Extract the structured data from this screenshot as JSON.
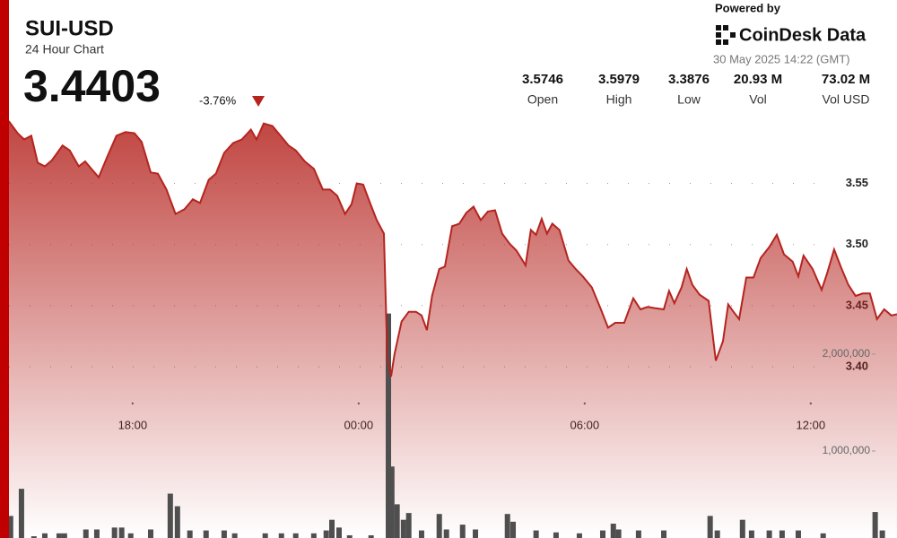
{
  "header": {
    "title": "SUI-USD",
    "subtitle": "24 Hour Chart",
    "price": "3.4403",
    "change": "-3.76%",
    "powered_by": "Powered by",
    "brand": "CoinDesk Data",
    "timestamp": "30 May 2025 14:22 (GMT)",
    "stats": [
      {
        "value": "3.5746",
        "label": "Open"
      },
      {
        "value": "3.5979",
        "label": "High"
      },
      {
        "value": "3.3876",
        "label": "Low"
      },
      {
        "value": "20.93 M",
        "label": "Vol"
      },
      {
        "value": "73.02 M",
        "label": "Vol USD"
      }
    ]
  },
  "chart_data": {
    "type": "line",
    "xlim": [
      -9.52,
      14.29
    ],
    "xticks": [
      {
        "value": -6,
        "label": "18:00"
      },
      {
        "value": 0,
        "label": "00:00"
      },
      {
        "value": 6,
        "label": "06:00"
      },
      {
        "value": 12,
        "label": "12:00"
      }
    ],
    "ylim": [
      3.26,
      3.7
    ],
    "yticks": [
      {
        "value": 3.4,
        "label": "3.40"
      },
      3.45,
      {
        "value": 3.5,
        "label": "3.50"
      },
      3.55
    ],
    "y2lim": [
      102000,
      5657000
    ],
    "y2ticks": [
      {
        "value": 1000000,
        "label": "1,000,000"
      },
      {
        "value": 2000000,
        "label": "2,000,000"
      }
    ],
    "grid": true,
    "series": [
      {
        "type": "line",
        "color": "#b5241f",
        "x": [
          -9.29,
          -9.05,
          -8.88,
          -8.69,
          -8.52,
          -8.33,
          -8.14,
          -7.86,
          -7.67,
          -7.43,
          -7.26,
          -7.07,
          -6.9,
          -6.67,
          -6.43,
          -6.19,
          -5.95,
          -5.76,
          -5.52,
          -5.33,
          -5.1,
          -4.86,
          -4.62,
          -4.4,
          -4.21,
          -3.98,
          -3.79,
          -3.57,
          -3.33,
          -3.1,
          -2.86,
          -2.71,
          -2.52,
          -2.29,
          -2.1,
          -1.86,
          -1.67,
          -1.43,
          -1.19,
          -0.95,
          -0.76,
          -0.57,
          -0.36,
          -0.19,
          -0.05,
          0.12,
          0.29,
          0.48,
          0.67,
          0.76,
          0.86,
          0.95,
          1.14,
          1.33,
          1.52,
          1.67,
          1.81,
          1.95,
          2.14,
          2.29,
          2.48,
          2.67,
          2.86,
          3.05,
          3.24,
          3.43,
          3.62,
          3.81,
          4.0,
          4.19,
          4.43,
          4.57,
          4.71,
          4.86,
          5.0,
          5.14,
          5.33,
          5.57,
          5.76,
          5.95,
          6.19,
          6.43,
          6.62,
          6.81,
          7.05,
          7.29,
          7.48,
          7.67,
          7.86,
          8.1,
          8.24,
          8.38,
          8.57,
          8.71,
          8.86,
          9.05,
          9.29,
          9.48,
          9.67,
          9.81,
          9.95,
          10.1,
          10.29,
          10.48,
          10.67,
          10.9,
          11.1,
          11.29,
          11.52,
          11.67,
          11.81,
          12.05,
          12.29,
          12.43,
          12.62,
          12.81,
          13.0,
          13.19,
          13.38,
          13.57,
          13.76,
          13.95,
          14.14,
          14.29
        ],
        "values": [
          3.601,
          3.591,
          3.586,
          3.589,
          3.567,
          3.564,
          3.569,
          3.581,
          3.577,
          3.564,
          3.568,
          3.561,
          3.555,
          3.572,
          3.589,
          3.592,
          3.591,
          3.584,
          3.559,
          3.558,
          3.545,
          3.525,
          3.529,
          3.537,
          3.534,
          3.553,
          3.558,
          3.575,
          3.583,
          3.586,
          3.594,
          3.586,
          3.599,
          3.597,
          3.59,
          3.581,
          3.577,
          3.568,
          3.562,
          3.545,
          3.545,
          3.54,
          3.525,
          3.533,
          3.55,
          3.549,
          3.535,
          3.52,
          3.509,
          3.407,
          3.392,
          3.41,
          3.437,
          3.445,
          3.445,
          3.442,
          3.43,
          3.458,
          3.48,
          3.482,
          3.515,
          3.517,
          3.526,
          3.531,
          3.52,
          3.527,
          3.528,
          3.509,
          3.501,
          3.495,
          3.483,
          3.512,
          3.508,
          3.521,
          3.509,
          3.517,
          3.512,
          3.487,
          3.48,
          3.474,
          3.465,
          3.447,
          3.432,
          3.436,
          3.436,
          3.456,
          3.447,
          3.449,
          3.448,
          3.447,
          3.462,
          3.452,
          3.465,
          3.48,
          3.467,
          3.459,
          3.454,
          3.405,
          3.421,
          3.451,
          3.445,
          3.439,
          3.473,
          3.473,
          3.489,
          3.498,
          3.508,
          3.492,
          3.486,
          3.474,
          3.491,
          3.48,
          3.463,
          3.476,
          3.496,
          3.481,
          3.467,
          3.458,
          3.46,
          3.46,
          3.439,
          3.447,
          3.442,
          3.443
        ]
      },
      {
        "type": "bar",
        "axis": "y2",
        "color": "#4f4f4f",
        "x": [
          -9.24,
          -8.95,
          -8.62,
          -8.33,
          -7.95,
          -7.81,
          -7.24,
          -6.95,
          -6.48,
          -6.29,
          -6.05,
          -5.52,
          -5.0,
          -4.81,
          -4.48,
          -4.05,
          -3.57,
          -3.29,
          -2.48,
          -2.05,
          -1.67,
          -1.19,
          -0.86,
          -0.71,
          -0.52,
          -0.24,
          0.33,
          0.79,
          0.88,
          1.02,
          1.19,
          1.33,
          1.67,
          2.14,
          2.33,
          2.76,
          3.1,
          3.95,
          4.1,
          4.71,
          5.24,
          5.86,
          6.48,
          6.76,
          6.9,
          7.43,
          8.1,
          9.33,
          9.52,
          10.19,
          10.43,
          10.9,
          11.24,
          11.67,
          12.33,
          13.71,
          13.9
        ],
        "values": [
          330000,
          610000,
          120000,
          150000,
          150000,
          150000,
          190000,
          190000,
          210000,
          210000,
          150000,
          190000,
          560000,
          430000,
          180000,
          180000,
          180000,
          150000,
          150000,
          150000,
          150000,
          150000,
          180000,
          290000,
          210000,
          130000,
          130000,
          2420000,
          840000,
          450000,
          290000,
          360000,
          180000,
          350000,
          190000,
          240000,
          190000,
          350000,
          270000,
          180000,
          160000,
          150000,
          180000,
          250000,
          190000,
          180000,
          180000,
          330000,
          180000,
          290000,
          180000,
          180000,
          180000,
          180000,
          150000,
          370000,
          180000
        ]
      }
    ]
  }
}
